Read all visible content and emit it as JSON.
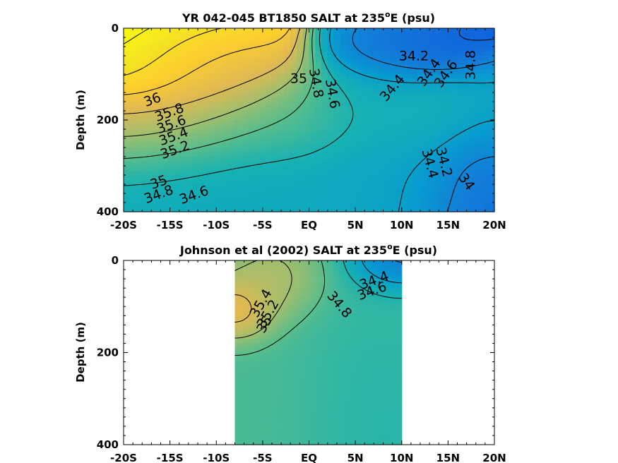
{
  "chart_data": [
    {
      "type": "heatmap",
      "title": "YR 042-045 BT1850 SALT at 235",
      "title_superscript": "o",
      "title_tail": "E (psu)",
      "ylabel": "Depth (m)",
      "xlim": [
        -20,
        20
      ],
      "ylim": [
        0,
        400
      ],
      "y_reversed": true,
      "x_ticks": [
        -20,
        -15,
        -10,
        -5,
        0,
        5,
        10,
        15,
        20
      ],
      "x_tick_labels": [
        "-20S",
        "-15S",
        "-10S",
        "-5S",
        "EQ",
        "5N",
        "10N",
        "15N",
        "20N"
      ],
      "y_ticks": [
        0,
        200,
        400
      ],
      "y_tick_labels": [
        "0",
        "200",
        "400"
      ],
      "data_x_range": [
        -20,
        20
      ],
      "contour_labels": [
        "36",
        "35.8",
        "35.6",
        "35.4",
        "35.2",
        "35",
        "34.8",
        "34.6",
        "35",
        "34.8",
        "34.6",
        "34.4",
        "34.2",
        "34.4",
        "34.6",
        "34.8",
        "34.2",
        "34.4",
        "34"
      ],
      "fields": [
        {
          "value": 35.0,
          "x": 0,
          "y": 200,
          "sigma_x": 60,
          "sigma_y": 60
        },
        {
          "value": 36.1,
          "x": -20,
          "y": 100,
          "sigma_x": 8,
          "sigma_y": 100
        },
        {
          "value": 35.4,
          "x": -11,
          "y": 100,
          "sigma_x": 5,
          "sigma_y": 55
        },
        {
          "value": 34.55,
          "x": 8,
          "y": 200,
          "sigma_x": 4,
          "sigma_y": 120
        },
        {
          "value": 34.15,
          "x": 11,
          "y": 50,
          "sigma_x": 4,
          "sigma_y": 40
        },
        {
          "value": 33.95,
          "x": 20,
          "y": 310,
          "sigma_x": 5,
          "sigma_y": 110
        },
        {
          "value": 34.7,
          "x": 0,
          "y": 330,
          "sigma_x": 30,
          "sigma_y": 80
        }
      ]
    },
    {
      "type": "heatmap",
      "title": "Johnson et al (2002) SALT at 235",
      "title_superscript": "o",
      "title_tail": "E (psu)",
      "ylabel": "Depth (m)",
      "xlim": [
        -20,
        20
      ],
      "ylim": [
        0,
        400
      ],
      "y_reversed": true,
      "x_ticks": [
        -20,
        -15,
        -10,
        -5,
        0,
        5,
        10,
        15,
        20
      ],
      "x_tick_labels": [
        "-20S",
        "-15S",
        "-10S",
        "-5S",
        "EQ",
        "5N",
        "10N",
        "15N",
        "20N"
      ],
      "y_ticks": [
        0,
        200,
        400
      ],
      "y_tick_labels": [
        "0",
        "200",
        "400"
      ],
      "data_x_range": [
        -8,
        10
      ],
      "contour_labels": [
        "35.4",
        "35.2",
        "35",
        "34.4",
        "34.6",
        "34.8"
      ],
      "fields": [
        {
          "value": 34.95,
          "x": 0,
          "y": 250,
          "sigma_x": 40,
          "sigma_y": 200
        },
        {
          "value": 35.85,
          "x": -8,
          "y": 110,
          "sigma_x": 2.5,
          "sigma_y": 40
        },
        {
          "value": 35.4,
          "x": -4,
          "y": 50,
          "sigma_x": 3,
          "sigma_y": 50
        },
        {
          "value": 34.1,
          "x": 10,
          "y": 0,
          "sigma_x": 3,
          "sigma_y": 40
        },
        {
          "value": 34.75,
          "x": 8,
          "y": 300,
          "sigma_x": 5,
          "sigma_y": 150
        }
      ]
    }
  ]
}
